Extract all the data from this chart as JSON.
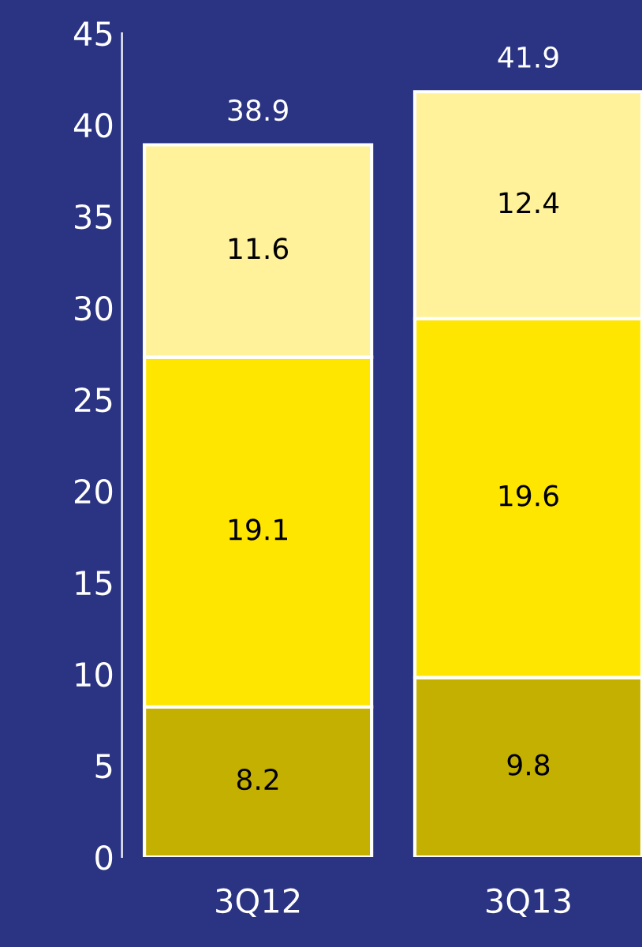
{
  "chart_data": {
    "type": "bar",
    "stacked": true,
    "categories": [
      "3Q12",
      "3Q13"
    ],
    "series": [
      {
        "color": "#c4b000",
        "values": [
          8.2,
          9.8
        ]
      },
      {
        "color": "#ffe600",
        "values": [
          19.1,
          19.6
        ]
      },
      {
        "color": "#fff29a",
        "values": [
          11.6,
          12.4
        ]
      }
    ],
    "ylim": [
      0,
      45
    ],
    "yticks": [
      0,
      5,
      10,
      15,
      20,
      25,
      30,
      35,
      40,
      45
    ],
    "data_labels": true,
    "totals": [
      "38.9",
      "41.9"
    ],
    "grid": false,
    "legend": false
  }
}
